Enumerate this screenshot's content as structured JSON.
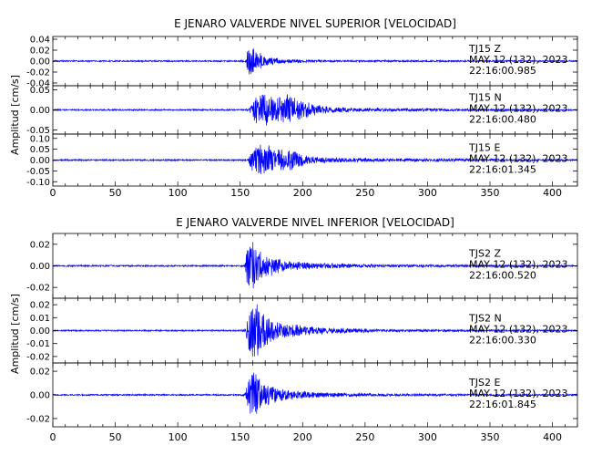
{
  "chart_data": [
    {
      "type": "line",
      "title": "E JENARO VALVERDE NIVEL SUPERIOR [VELOCIDAD]",
      "ylabel": "Amplitud [cm/s]",
      "xlim": [
        0,
        420
      ],
      "x_ticks": [
        "0",
        "50",
        "100",
        "150",
        "200",
        "250",
        "300",
        "350",
        "400"
      ],
      "grid": false,
      "line_color": "#0000ff",
      "series": [
        {
          "name": "TJ15 Z",
          "label_lines": [
            "TJ15   Z",
            "MAY 12 (132), 2023",
            "22:16:00.985"
          ],
          "ylim": [
            -0.045,
            0.045
          ],
          "y_ticks": [
            {
              "v": 0.04,
              "t": "0.04"
            },
            {
              "v": 0.02,
              "t": "0.02"
            },
            {
              "v": 0.0,
              "t": "0.00"
            },
            {
              "v": -0.02,
              "t": "-0.02"
            },
            {
              "v": -0.04,
              "t": "-0.04"
            }
          ],
          "noise": 0.0015,
          "onset": 155,
          "peak": 0.032,
          "envelope": [
            [
              150,
              0.0015
            ],
            [
              155,
              0.003
            ],
            [
              156,
              0.032
            ],
            [
              163,
              0.022
            ],
            [
              170,
              0.009
            ],
            [
              185,
              0.004
            ],
            [
              220,
              0.002
            ],
            [
              420,
              0.0015
            ]
          ]
        },
        {
          "name": "TJ15 N",
          "label_lines": [
            "TJ15   N",
            "MAY 12 (132), 2023",
            "22:16:00.480"
          ],
          "ylim": [
            -0.06,
            0.06
          ],
          "y_ticks": [
            {
              "v": 0.05,
              "t": "0.05"
            },
            {
              "v": 0.0,
              "t": "0.00"
            },
            {
              "v": -0.05,
              "t": "-0.05"
            }
          ],
          "noise": 0.002,
          "onset": 158,
          "peak": 0.045,
          "envelope": [
            [
              150,
              0.002
            ],
            [
              157,
              0.003
            ],
            [
              160,
              0.03
            ],
            [
              170,
              0.045
            ],
            [
              178,
              0.032
            ],
            [
              188,
              0.04
            ],
            [
              200,
              0.025
            ],
            [
              215,
              0.01
            ],
            [
              240,
              0.005
            ],
            [
              420,
              0.002
            ]
          ]
        },
        {
          "name": "TJ15 E",
          "label_lines": [
            "TJ15   E",
            "MAY 12 (132), 2023",
            "22:16:01.345"
          ],
          "ylim": [
            -0.12,
            0.12
          ],
          "y_ticks": [
            {
              "v": 0.1,
              "t": "0.10"
            },
            {
              "v": 0.05,
              "t": "0.05"
            },
            {
              "v": 0.0,
              "t": "0.00"
            },
            {
              "v": -0.05,
              "t": "-0.05"
            },
            {
              "v": -0.1,
              "t": "-0.10"
            }
          ],
          "noise": 0.004,
          "onset": 157,
          "peak": 0.08,
          "envelope": [
            [
              150,
              0.004
            ],
            [
              156,
              0.006
            ],
            [
              160,
              0.06
            ],
            [
              168,
              0.08
            ],
            [
              178,
              0.06
            ],
            [
              190,
              0.05
            ],
            [
              205,
              0.02
            ],
            [
              230,
              0.01
            ],
            [
              420,
              0.004
            ]
          ]
        }
      ]
    },
    {
      "type": "line",
      "title": "E JENARO VALVERDE NIVEL INFERIOR [VELOCIDAD]",
      "ylabel": "Amplitud [cm/s]",
      "xlim": [
        0,
        420
      ],
      "x_ticks": [
        "0",
        "50",
        "100",
        "150",
        "200",
        "250",
        "300",
        "350",
        "400"
      ],
      "grid": false,
      "line_color": "#0000ff",
      "series": [
        {
          "name": "TJS2 Z",
          "label_lines": [
            "TJS2   Z",
            "MAY 12 (132), 2023",
            "22:16:00.520"
          ],
          "ylim": [
            -0.03,
            0.03
          ],
          "y_ticks": [
            {
              "v": 0.02,
              "t": "0.02"
            },
            {
              "v": 0.0,
              "t": "0.00"
            },
            {
              "v": -0.02,
              "t": "-0.02"
            }
          ],
          "noise": 0.0008,
          "onset": 155,
          "peak": 0.028,
          "envelope": [
            [
              150,
              0.0008
            ],
            [
              154,
              0.0015
            ],
            [
              156,
              0.028
            ],
            [
              162,
              0.02
            ],
            [
              170,
              0.012
            ],
            [
              185,
              0.005
            ],
            [
              210,
              0.003
            ],
            [
              260,
              0.0015
            ],
            [
              420,
              0.0008
            ]
          ]
        },
        {
          "name": "TJS2 N",
          "label_lines": [
            "TJS2   N",
            "MAY 12 (132), 2023",
            "22:16:00.330"
          ],
          "ylim": [
            -0.025,
            0.025
          ],
          "y_ticks": [
            {
              "v": 0.02,
              "t": "0.02"
            },
            {
              "v": 0.01,
              "t": "0.01"
            },
            {
              "v": 0.0,
              "t": "0.00"
            },
            {
              "v": -0.01,
              "t": "-0.01"
            },
            {
              "v": -0.02,
              "t": "-0.02"
            }
          ],
          "noise": 0.0006,
          "onset": 155,
          "peak": 0.022,
          "envelope": [
            [
              150,
              0.0006
            ],
            [
              154,
              0.0012
            ],
            [
              157,
              0.02
            ],
            [
              163,
              0.022
            ],
            [
              170,
              0.012
            ],
            [
              185,
              0.006
            ],
            [
              210,
              0.003
            ],
            [
              260,
              0.0012
            ],
            [
              420,
              0.0006
            ]
          ]
        },
        {
          "name": "TJS2 E",
          "label_lines": [
            "TJS2   E",
            "MAY 12 (132), 2023",
            "22:16:01.845"
          ],
          "ylim": [
            -0.027,
            0.027
          ],
          "y_ticks": [
            {
              "v": 0.02,
              "t": "0.02"
            },
            {
              "v": 0.0,
              "t": "0.00"
            },
            {
              "v": -0.02,
              "t": "-0.02"
            }
          ],
          "noise": 0.0007,
          "onset": 155,
          "peak": 0.022,
          "envelope": [
            [
              150,
              0.0007
            ],
            [
              154,
              0.0014
            ],
            [
              157,
              0.02
            ],
            [
              162,
              0.02
            ],
            [
              170,
              0.01
            ],
            [
              185,
              0.005
            ],
            [
              210,
              0.0025
            ],
            [
              260,
              0.0012
            ],
            [
              420,
              0.0007
            ]
          ]
        }
      ]
    }
  ]
}
